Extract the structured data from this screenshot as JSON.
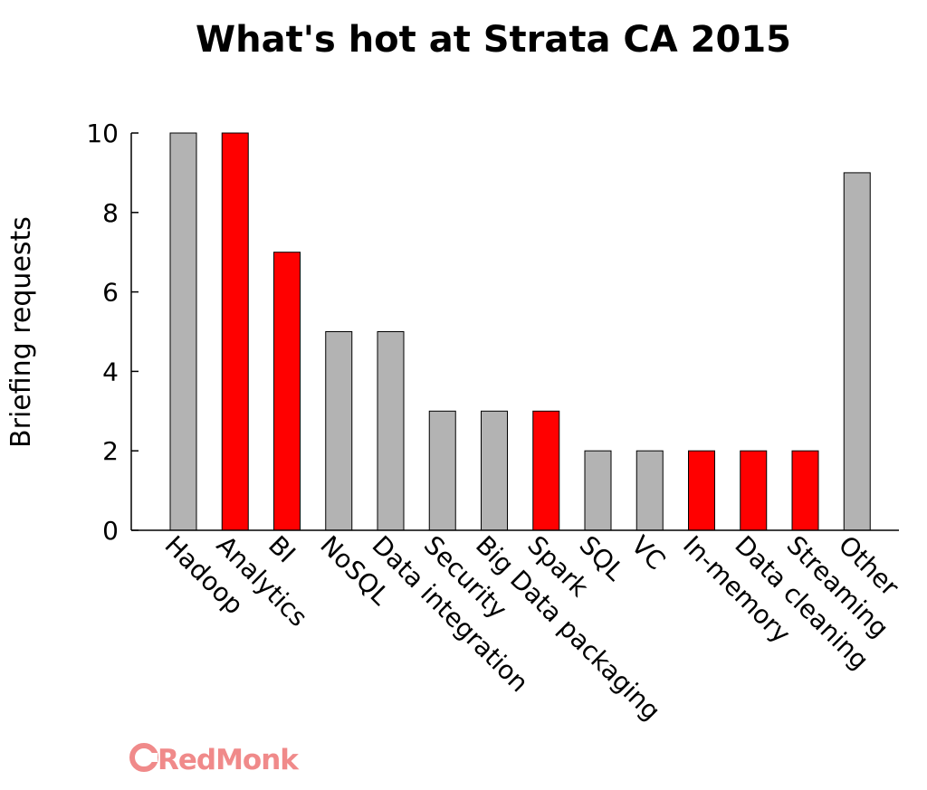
{
  "chart_data": {
    "type": "bar",
    "title": "What's hot at Strata CA 2015",
    "xlabel": "",
    "ylabel": "Briefing requests",
    "ylim": [
      0,
      10
    ],
    "yticks": [
      0,
      2,
      4,
      6,
      8,
      10
    ],
    "yticks_labels": [
      "0",
      "2",
      "4",
      "6",
      "8",
      "10"
    ],
    "categories": [
      "Hadoop",
      "Analytics",
      "BI",
      "NoSQL",
      "Data integration",
      "Security",
      "Big Data packaging",
      "Spark",
      "SQL",
      "VC",
      "In-memory",
      "Data cleaning",
      "Streaming",
      "Other"
    ],
    "values": [
      10,
      10,
      7,
      5,
      5,
      3,
      3,
      3,
      2,
      2,
      2,
      2,
      2,
      9
    ],
    "bar_colors": [
      "#b3b3b3",
      "#ff0000",
      "#ff0000",
      "#b3b3b3",
      "#b3b3b3",
      "#b3b3b3",
      "#b3b3b3",
      "#ff0000",
      "#b3b3b3",
      "#b3b3b3",
      "#ff0000",
      "#ff0000",
      "#ff0000",
      "#b3b3b3"
    ],
    "grid": false,
    "legend": "none"
  },
  "logo": {
    "text": "RedMonk",
    "color": "#f08a8a"
  }
}
